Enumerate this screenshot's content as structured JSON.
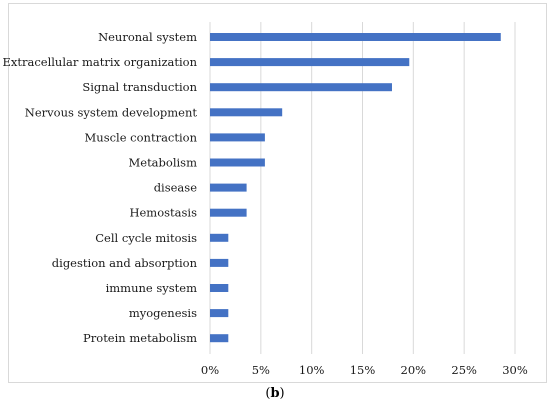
{
  "chart_data": {
    "type": "bar",
    "orientation": "horizontal",
    "categories": [
      "Neuronal system",
      "Extracellular matrix organization",
      "Signal transduction",
      "Nervous system development",
      "Muscle contraction",
      "Metabolism",
      "disease",
      "Hemostasis",
      "Cell cycle mitosis",
      "digestion and absorption",
      "immune system",
      "myogenesis",
      "Protein metabolism"
    ],
    "values": [
      28.6,
      19.6,
      17.9,
      7.1,
      5.4,
      5.4,
      3.6,
      3.6,
      1.8,
      1.8,
      1.8,
      1.8,
      1.8
    ],
    "xlim": [
      0,
      30
    ],
    "xticks": [
      "0%",
      "5%",
      "10%",
      "15%",
      "20%",
      "25%",
      "30%"
    ],
    "grid": "vertical",
    "bar_color": "#4472C4",
    "grid_color": "#d9d9d9",
    "title": "",
    "xlabel": "",
    "ylabel": ""
  },
  "caption": {
    "open": "(",
    "letter": "b",
    "close": ")"
  }
}
